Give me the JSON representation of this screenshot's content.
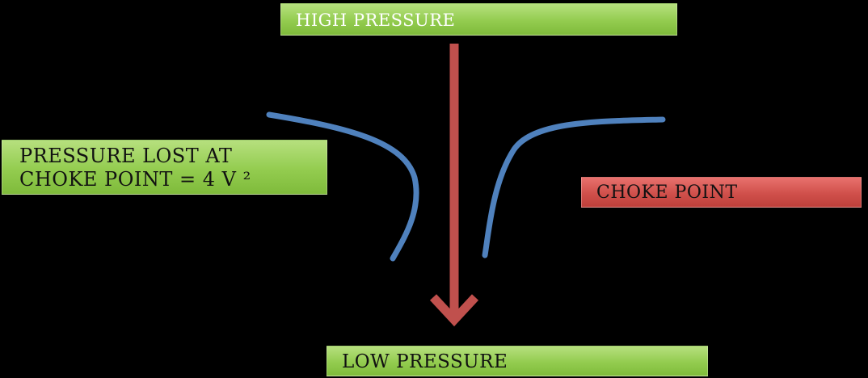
{
  "labels": {
    "high_pressure": "HIGH PRESSURE",
    "low_pressure": "LOW PRESSURE",
    "pressure_lost_line1": "PRESSURE LOST AT",
    "pressure_lost_line2": "CHOKE POINT = 4 V ²",
    "choke_point": "CHOKE POINT"
  },
  "colors": {
    "background": "#000000",
    "box_green": "#93cc4f",
    "box_red": "#d0504b",
    "curve_blue": "#4f81bd",
    "arrow_red": "#c0504d"
  }
}
